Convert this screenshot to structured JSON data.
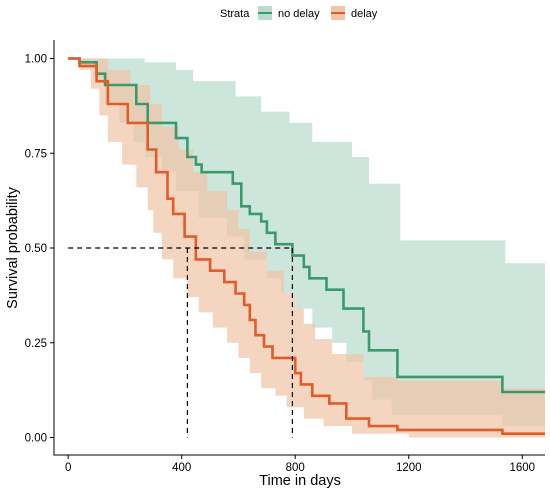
{
  "chart_data": {
    "type": "line",
    "subtype": "kaplan-meier survival curve with confidence bands",
    "xlabel": "Time in days",
    "ylabel": "Survival probability",
    "xlim": [
      -50,
      1680
    ],
    "ylim": [
      0,
      1.0
    ],
    "x_ticks": [
      0,
      400,
      800,
      1200,
      1600
    ],
    "y_ticks": [
      0,
      0.25,
      0.5,
      0.75,
      1.0
    ],
    "x_tick_labels": [
      "0",
      "400",
      "800",
      "1200",
      "1600"
    ],
    "y_tick_labels": [
      "0.00",
      "0.25",
      "0.50",
      "0.75",
      "1.00"
    ],
    "grid": false,
    "legend": {
      "title": "Strata",
      "placement": "top",
      "entries": [
        "no delay",
        "delay"
      ]
    },
    "series": [
      {
        "name": "no delay",
        "color": "#3a9a6e",
        "band_color": "#b9dccd",
        "steps": [
          [
            0,
            1.0
          ],
          [
            40,
            0.99
          ],
          [
            100,
            0.96
          ],
          [
            130,
            0.93
          ],
          [
            240,
            0.88
          ],
          [
            280,
            0.83
          ],
          [
            380,
            0.79
          ],
          [
            420,
            0.74
          ],
          [
            450,
            0.72
          ],
          [
            470,
            0.7
          ],
          [
            580,
            0.67
          ],
          [
            610,
            0.61
          ],
          [
            640,
            0.59
          ],
          [
            680,
            0.57
          ],
          [
            700,
            0.54
          ],
          [
            730,
            0.51
          ],
          [
            790,
            0.48
          ],
          [
            830,
            0.45
          ],
          [
            850,
            0.42
          ],
          [
            910,
            0.39
          ],
          [
            970,
            0.34
          ],
          [
            1040,
            0.28
          ],
          [
            1060,
            0.23
          ],
          [
            1160,
            0.16
          ],
          [
            1530,
            0.12
          ],
          [
            1680,
            0.12
          ]
        ],
        "upper": [
          [
            0,
            1.0
          ],
          [
            40,
            1.0
          ],
          [
            270,
            0.99
          ],
          [
            380,
            0.97
          ],
          [
            440,
            0.94
          ],
          [
            590,
            0.9
          ],
          [
            680,
            0.86
          ],
          [
            780,
            0.83
          ],
          [
            860,
            0.78
          ],
          [
            1000,
            0.74
          ],
          [
            1060,
            0.67
          ],
          [
            1170,
            0.52
          ],
          [
            1540,
            0.46
          ],
          [
            1680,
            0.46
          ]
        ],
        "lower": [
          [
            0,
            1.0
          ],
          [
            40,
            0.98
          ],
          [
            90,
            0.95
          ],
          [
            130,
            0.88
          ],
          [
            180,
            0.83
          ],
          [
            230,
            0.78
          ],
          [
            270,
            0.74
          ],
          [
            330,
            0.7
          ],
          [
            380,
            0.65
          ],
          [
            460,
            0.58
          ],
          [
            560,
            0.53
          ],
          [
            620,
            0.47
          ],
          [
            700,
            0.42
          ],
          [
            750,
            0.38
          ],
          [
            800,
            0.34
          ],
          [
            860,
            0.29
          ],
          [
            930,
            0.25
          ],
          [
            980,
            0.2
          ],
          [
            1040,
            0.15
          ],
          [
            1070,
            0.1
          ],
          [
            1140,
            0.06
          ],
          [
            1530,
            0.03
          ],
          [
            1680,
            0.03
          ]
        ]
      },
      {
        "name": "delay",
        "color": "#e05d2a",
        "band_color": "#f0c5a8",
        "steps": [
          [
            0,
            1.0
          ],
          [
            40,
            0.98
          ],
          [
            100,
            0.94
          ],
          [
            140,
            0.88
          ],
          [
            210,
            0.83
          ],
          [
            280,
            0.76
          ],
          [
            310,
            0.7
          ],
          [
            350,
            0.63
          ],
          [
            370,
            0.59
          ],
          [
            410,
            0.53
          ],
          [
            450,
            0.47
          ],
          [
            500,
            0.44
          ],
          [
            550,
            0.41
          ],
          [
            590,
            0.38
          ],
          [
            620,
            0.35
          ],
          [
            640,
            0.31
          ],
          [
            660,
            0.27
          ],
          [
            690,
            0.24
          ],
          [
            720,
            0.21
          ],
          [
            800,
            0.17
          ],
          [
            820,
            0.14
          ],
          [
            860,
            0.11
          ],
          [
            920,
            0.09
          ],
          [
            980,
            0.05
          ],
          [
            1060,
            0.03
          ],
          [
            1160,
            0.02
          ],
          [
            1530,
            0.01
          ],
          [
            1680,
            0.01
          ]
        ],
        "upper": [
          [
            0,
            1.0
          ],
          [
            140,
            0.97
          ],
          [
            220,
            0.93
          ],
          [
            290,
            0.88
          ],
          [
            330,
            0.82
          ],
          [
            390,
            0.76
          ],
          [
            440,
            0.7
          ],
          [
            490,
            0.65
          ],
          [
            560,
            0.6
          ],
          [
            600,
            0.55
          ],
          [
            640,
            0.49
          ],
          [
            700,
            0.44
          ],
          [
            760,
            0.38
          ],
          [
            800,
            0.34
          ],
          [
            830,
            0.3
          ],
          [
            870,
            0.26
          ],
          [
            930,
            0.22
          ],
          [
            1040,
            0.16
          ],
          [
            1160,
            0.15
          ],
          [
            1530,
            0.13
          ],
          [
            1680,
            0.13
          ]
        ],
        "lower": [
          [
            0,
            1.0
          ],
          [
            40,
            0.97
          ],
          [
            80,
            0.92
          ],
          [
            110,
            0.85
          ],
          [
            140,
            0.78
          ],
          [
            190,
            0.72
          ],
          [
            240,
            0.66
          ],
          [
            280,
            0.6
          ],
          [
            300,
            0.54
          ],
          [
            330,
            0.47
          ],
          [
            370,
            0.42
          ],
          [
            420,
            0.37
          ],
          [
            460,
            0.33
          ],
          [
            510,
            0.29
          ],
          [
            560,
            0.25
          ],
          [
            600,
            0.21
          ],
          [
            640,
            0.17
          ],
          [
            680,
            0.13
          ],
          [
            730,
            0.11
          ],
          [
            770,
            0.08
          ],
          [
            830,
            0.05
          ],
          [
            900,
            0.03
          ],
          [
            1000,
            0.01
          ],
          [
            1200,
            0.0
          ],
          [
            1680,
            0.0
          ]
        ]
      }
    ],
    "median_lines": {
      "y": 0.5,
      "x": [
        420,
        790
      ],
      "style": "dashed"
    }
  }
}
